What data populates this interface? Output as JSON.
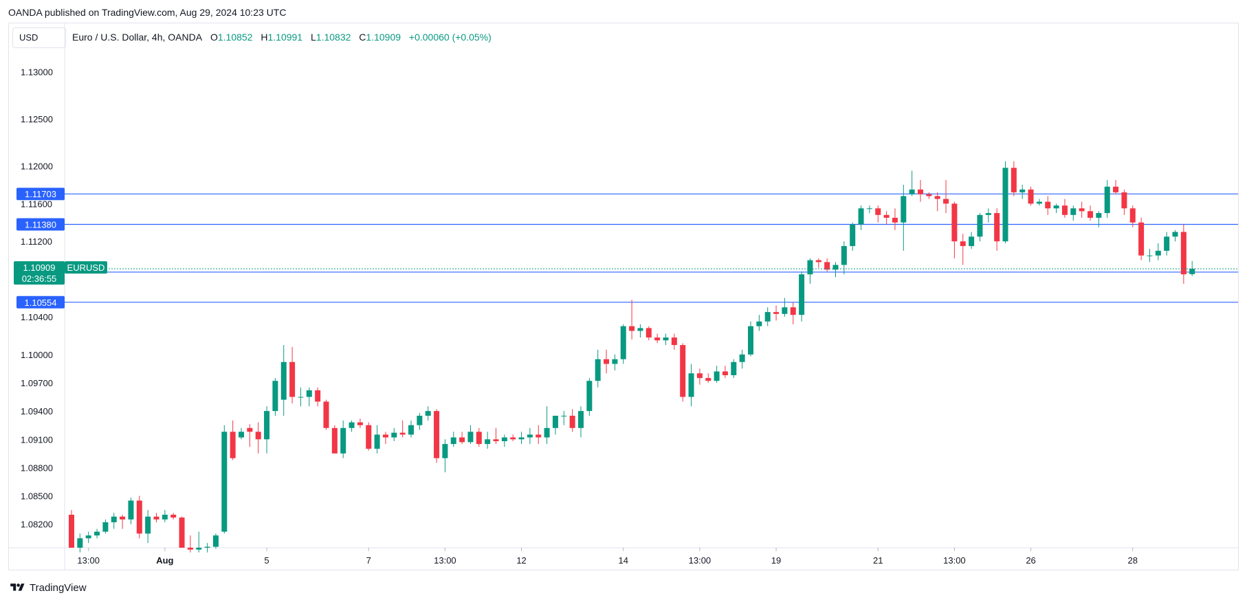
{
  "header": {
    "publisher": "OANDA published on TradingView.com, Aug 29, 2024 10:23 UTC"
  },
  "toolbar": {
    "currency": "USD"
  },
  "legend": {
    "symbol": "Euro / U.S. Dollar, 4h, OANDA",
    "open_label": "O",
    "open": "1.10852",
    "high_label": "H",
    "high": "1.10991",
    "low_label": "L",
    "low": "1.10832",
    "close_label": "C",
    "close": "1.10909",
    "change": "+0.00060 (+0.05%)"
  },
  "footer": {
    "brand": "TradingView",
    "logo_icon": "tradingview-logo-icon"
  },
  "colors": {
    "up": "#089981",
    "down": "#f23645",
    "hline": "#2962ff",
    "grid": "#e0e3eb"
  },
  "chart_data": {
    "type": "candlestick",
    "symbol": "EURUSD",
    "timeframe": "4h",
    "ylim": [
      1.0795,
      1.1325
    ],
    "y_ticks": [
      "1.08200",
      "1.08500",
      "1.08800",
      "1.09100",
      "1.09400",
      "1.09700",
      "1.10000",
      "1.10400",
      "1.11200",
      "1.11600",
      "1.12000",
      "1.12500",
      "1.13000"
    ],
    "x_ticks": [
      {
        "label": "13:00",
        "bar": 2
      },
      {
        "label": "Aug",
        "bar": 11
      },
      {
        "label": "5",
        "bar": 23
      },
      {
        "label": "7",
        "bar": 35
      },
      {
        "label": "13:00",
        "bar": 44
      },
      {
        "label": "12",
        "bar": 53
      },
      {
        "label": "14",
        "bar": 65
      },
      {
        "label": "13:00",
        "bar": 74
      },
      {
        "label": "19",
        "bar": 83
      },
      {
        "label": "21",
        "bar": 95
      },
      {
        "label": "13:00",
        "bar": 104
      },
      {
        "label": "26",
        "bar": 113
      },
      {
        "label": "28",
        "bar": 125
      }
    ],
    "horizontal_lines": [
      {
        "price": 1.11703,
        "label": "1.11703"
      },
      {
        "price": 1.1138,
        "label": "1.11380"
      },
      {
        "price": 1.10874,
        "label": "1.10874"
      },
      {
        "price": 1.10554,
        "label": "1.10554"
      }
    ],
    "last_price": {
      "price": 1.10909,
      "label": "1.10909",
      "symbol": "EURUSD",
      "countdown": "02:36:55"
    },
    "candles": [
      [
        1.083,
        1.0835,
        1.0795,
        1.0795
      ],
      [
        1.0795,
        1.081,
        1.079,
        1.0805
      ],
      [
        1.0805,
        1.0812,
        1.08,
        1.0808
      ],
      [
        1.0808,
        1.0815,
        1.0805,
        1.0812
      ],
      [
        1.0812,
        1.0825,
        1.081,
        1.0822
      ],
      [
        1.0822,
        1.0832,
        1.0815,
        1.0828
      ],
      [
        1.0828,
        1.083,
        1.0815,
        1.0825
      ],
      [
        1.0825,
        1.0848,
        1.082,
        1.0845
      ],
      [
        1.0845,
        1.085,
        1.0805,
        1.081
      ],
      [
        1.081,
        1.0835,
        1.08,
        1.0828
      ],
      [
        1.0828,
        1.0832,
        1.0822,
        1.0825
      ],
      [
        1.0825,
        1.0835,
        1.0822,
        1.083
      ],
      [
        1.083,
        1.0832,
        1.0825,
        1.0827
      ],
      [
        1.0827,
        1.0828,
        1.0795,
        1.0795
      ],
      [
        1.0795,
        1.0808,
        1.079,
        1.0793
      ],
      [
        1.0793,
        1.0812,
        1.079,
        1.0795
      ],
      [
        1.0795,
        1.08,
        1.079,
        1.0796
      ],
      [
        1.0796,
        1.081,
        1.0794,
        1.0808
      ],
      [
        1.0812,
        1.0925,
        1.081,
        1.0918
      ],
      [
        1.0918,
        1.093,
        1.0888,
        1.089
      ],
      [
        1.0912,
        1.0922,
        1.091,
        1.0918
      ],
      [
        1.0922,
        1.0926,
        1.0902,
        1.0918
      ],
      [
        1.0918,
        1.0928,
        1.0895,
        1.091
      ],
      [
        1.091,
        1.0945,
        1.0895,
        1.094
      ],
      [
        1.094,
        1.0975,
        1.0935,
        1.0972
      ],
      [
        1.0952,
        1.101,
        1.0935,
        1.0992
      ],
      [
        1.0992,
        1.1008,
        1.0948,
        1.0955
      ],
      [
        1.0955,
        1.0965,
        1.0945,
        1.0955
      ],
      [
        1.0955,
        1.0965,
        1.0945,
        1.0962
      ],
      [
        1.0962,
        1.0965,
        1.0945,
        1.095
      ],
      [
        1.095,
        1.0952,
        1.092,
        1.0922
      ],
      [
        1.0922,
        1.0925,
        1.0895,
        1.0895
      ],
      [
        1.0895,
        1.093,
        1.089,
        1.0922
      ],
      [
        1.0922,
        1.093,
        1.0918,
        1.0928
      ],
      [
        1.0928,
        1.0932,
        1.0922,
        1.0925
      ],
      [
        1.0925,
        1.0928,
        1.0898,
        1.09
      ],
      [
        1.09,
        1.0925,
        1.0895,
        1.0915
      ],
      [
        1.0915,
        1.0918,
        1.0905,
        1.0912
      ],
      [
        1.0912,
        1.0922,
        1.0908,
        1.0917
      ],
      [
        1.0917,
        1.093,
        1.0912,
        1.0915
      ],
      [
        1.0915,
        1.093,
        1.0912,
        1.0925
      ],
      [
        1.0925,
        1.0938,
        1.092,
        1.0935
      ],
      [
        1.0935,
        1.0945,
        1.093,
        1.094
      ],
      [
        1.094,
        1.0942,
        1.0885,
        1.089
      ],
      [
        1.089,
        1.091,
        1.0875,
        1.0905
      ],
      [
        1.0905,
        1.0918,
        1.0902,
        1.0912
      ],
      [
        1.0912,
        1.0918,
        1.0905,
        1.0907
      ],
      [
        1.0907,
        1.0925,
        1.0905,
        1.0918
      ],
      [
        1.0918,
        1.0922,
        1.0902,
        1.0905
      ],
      [
        1.0905,
        1.0918,
        1.09,
        1.091
      ],
      [
        1.091,
        1.0922,
        1.0905,
        1.0908
      ],
      [
        1.0908,
        1.0915,
        1.0902,
        1.0912
      ],
      [
        1.0912,
        1.0915,
        1.0908,
        1.091
      ],
      [
        1.091,
        1.0918,
        1.0905,
        1.0912
      ],
      [
        1.0912,
        1.0922,
        1.0905,
        1.0915
      ],
      [
        1.0915,
        1.0925,
        1.0905,
        1.0912
      ],
      [
        1.0912,
        1.0945,
        1.0905,
        1.0922
      ],
      [
        1.0922,
        1.0932,
        1.0915,
        1.0935
      ],
      [
        1.0935,
        1.094,
        1.0925,
        1.0935
      ],
      [
        1.0935,
        1.0942,
        1.0918,
        1.0922
      ],
      [
        1.0922,
        1.0945,
        1.0912,
        1.094
      ],
      [
        1.094,
        1.0975,
        1.0935,
        1.0972
      ],
      [
        1.0972,
        1.1005,
        1.0965,
        1.0995
      ],
      [
        1.0995,
        1.1005,
        1.098,
        1.099
      ],
      [
        1.099,
        1.1,
        1.0983,
        1.0995
      ],
      [
        1.0995,
        1.1032,
        1.099,
        1.103
      ],
      [
        1.103,
        1.1058,
        1.1016,
        1.1025
      ],
      [
        1.1025,
        1.1032,
        1.1018,
        1.1028
      ],
      [
        1.1028,
        1.103,
        1.1015,
        1.1018
      ],
      [
        1.1018,
        1.1022,
        1.1012,
        1.1015
      ],
      [
        1.1015,
        1.1022,
        1.101,
        1.1018
      ],
      [
        1.1018,
        1.1022,
        1.1005,
        1.101
      ],
      [
        1.101,
        1.1012,
        1.095,
        1.0955
      ],
      [
        1.0955,
        1.099,
        1.0945,
        1.098
      ],
      [
        1.098,
        1.0985,
        1.0968,
        1.0975
      ],
      [
        1.0975,
        1.098,
        1.097,
        1.0972
      ],
      [
        1.0972,
        1.0988,
        1.097,
        1.0982
      ],
      [
        1.0982,
        1.0988,
        1.0975,
        1.0978
      ],
      [
        1.0978,
        1.0995,
        1.0975,
        1.0992
      ],
      [
        1.0992,
        1.1005,
        1.0985,
        1.1
      ],
      [
        1.1,
        1.1035,
        1.0998,
        1.103
      ],
      [
        1.103,
        1.1042,
        1.1025,
        1.1035
      ],
      [
        1.1035,
        1.105,
        1.103,
        1.1045
      ],
      [
        1.1045,
        1.1052,
        1.1036,
        1.1043
      ],
      [
        1.1043,
        1.106,
        1.104,
        1.105
      ],
      [
        1.105,
        1.1055,
        1.1032,
        1.1042
      ],
      [
        1.1042,
        1.1088,
        1.1035,
        1.1085
      ],
      [
        1.1085,
        1.1102,
        1.1075,
        1.11
      ],
      [
        1.11,
        1.1102,
        1.1092,
        1.1098
      ],
      [
        1.1098,
        1.1102,
        1.1088,
        1.109
      ],
      [
        1.109,
        1.1098,
        1.1082,
        1.1095
      ],
      [
        1.1095,
        1.112,
        1.1085,
        1.1115
      ],
      [
        1.1115,
        1.114,
        1.111,
        1.1138
      ],
      [
        1.1138,
        1.1158,
        1.1132,
        1.1155
      ],
      [
        1.1155,
        1.1158,
        1.115,
        1.1155
      ],
      [
        1.1155,
        1.1158,
        1.114,
        1.1148
      ],
      [
        1.1148,
        1.1152,
        1.1138,
        1.1145
      ],
      [
        1.1145,
        1.1155,
        1.1132,
        1.114
      ],
      [
        1.114,
        1.118,
        1.111,
        1.1168
      ],
      [
        1.117,
        1.1195,
        1.1168,
        1.1175
      ],
      [
        1.1175,
        1.1185,
        1.1162,
        1.117
      ],
      [
        1.117,
        1.1172,
        1.1165,
        1.1168
      ],
      [
        1.1168,
        1.1172,
        1.1152,
        1.1165
      ],
      [
        1.1165,
        1.1185,
        1.115,
        1.116
      ],
      [
        1.116,
        1.1162,
        1.1102,
        1.112
      ],
      [
        1.112,
        1.1128,
        1.1095,
        1.1115
      ],
      [
        1.1115,
        1.113,
        1.1112,
        1.1125
      ],
      [
        1.1125,
        1.115,
        1.112,
        1.1148
      ],
      [
        1.1148,
        1.1155,
        1.114,
        1.115
      ],
      [
        1.115,
        1.1155,
        1.111,
        1.112
      ],
      [
        1.112,
        1.1205,
        1.1118,
        1.1198
      ],
      [
        1.1198,
        1.1205,
        1.1168,
        1.1172
      ],
      [
        1.1172,
        1.118,
        1.1165,
        1.1175
      ],
      [
        1.1175,
        1.1178,
        1.1158,
        1.116
      ],
      [
        1.116,
        1.1165,
        1.1158,
        1.1162
      ],
      [
        1.1162,
        1.1168,
        1.1148,
        1.1155
      ],
      [
        1.1155,
        1.116,
        1.115,
        1.1158
      ],
      [
        1.1158,
        1.1165,
        1.1145,
        1.1148
      ],
      [
        1.1148,
        1.1158,
        1.1142,
        1.1155
      ],
      [
        1.1155,
        1.1162,
        1.1145,
        1.1152
      ],
      [
        1.1152,
        1.1158,
        1.1142,
        1.1145
      ],
      [
        1.1145,
        1.1152,
        1.1135,
        1.115
      ],
      [
        1.115,
        1.1185,
        1.1145,
        1.1178
      ],
      [
        1.1178,
        1.1185,
        1.117,
        1.1172
      ],
      [
        1.1172,
        1.1175,
        1.1148,
        1.1155
      ],
      [
        1.1155,
        1.1158,
        1.1135,
        1.114
      ],
      [
        1.114,
        1.1145,
        1.11,
        1.1105
      ],
      [
        1.1105,
        1.1112,
        1.1098,
        1.1105
      ],
      [
        1.1105,
        1.1118,
        1.11,
        1.111
      ],
      [
        1.111,
        1.113,
        1.1105,
        1.1125
      ],
      [
        1.1125,
        1.1132,
        1.112,
        1.113
      ],
      [
        1.113,
        1.1138,
        1.1075,
        1.1085
      ],
      [
        1.10852,
        1.10991,
        1.10832,
        1.10909
      ]
    ]
  }
}
